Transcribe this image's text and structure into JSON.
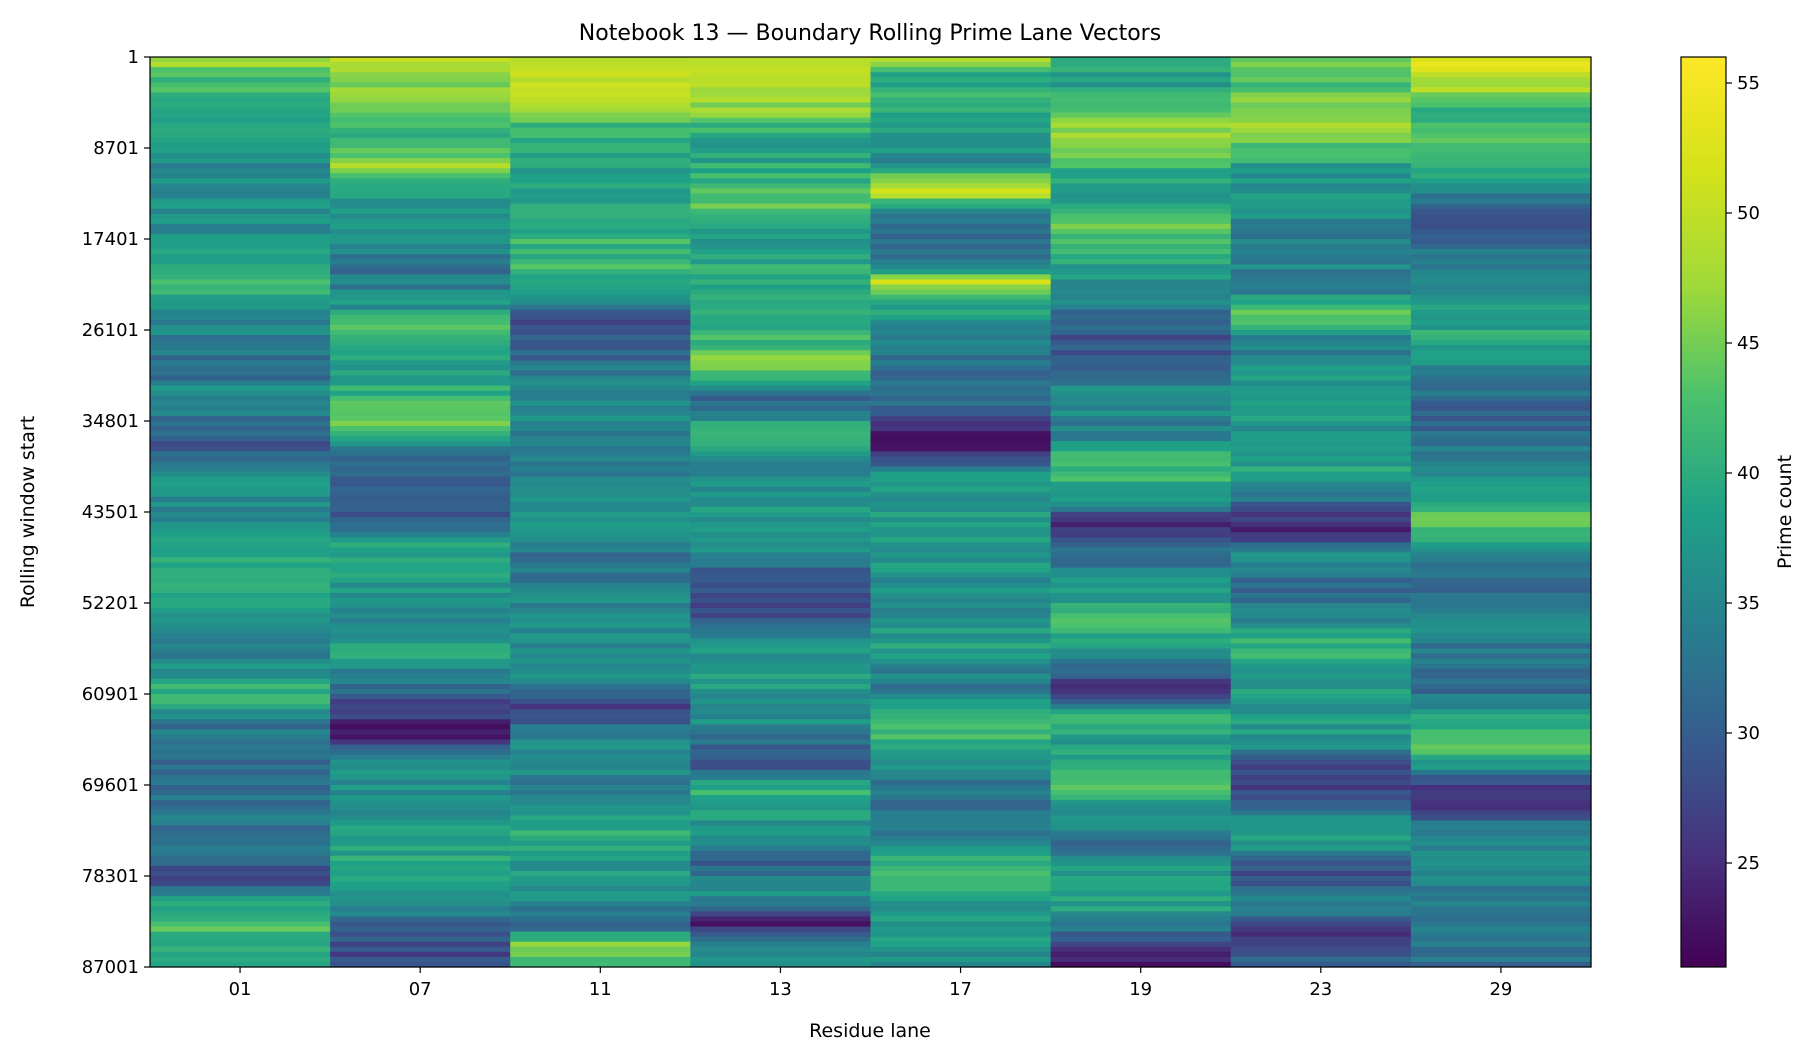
{
  "chart_data": {
    "type": "heatmap",
    "title": "Notebook 13 — Boundary Rolling Prime Lane Vectors",
    "xlabel": "Residue lane",
    "ylabel": "Rolling window start",
    "x_categories": [
      "01",
      "07",
      "11",
      "13",
      "17",
      "19",
      "23",
      "29"
    ],
    "y_ticks": [
      "1",
      "8701",
      "17401",
      "26101",
      "34801",
      "43501",
      "52201",
      "60901",
      "69601",
      "78301",
      "87001"
    ],
    "y_range": [
      1,
      87001
    ],
    "colorbar": {
      "label": "Prime count",
      "range": [
        21,
        56
      ],
      "ticks": [
        25,
        30,
        35,
        40,
        45,
        50,
        55
      ],
      "colormap": "viridis"
    },
    "anchors": [
      [
        [
          1,
          50
        ],
        [
          2000,
          42
        ],
        [
          5000,
          41
        ],
        [
          8000,
          38
        ],
        [
          11000,
          35
        ],
        [
          14000,
          37
        ],
        [
          17000,
          36
        ],
        [
          20000,
          38
        ],
        [
          21700,
          45
        ],
        [
          23000,
          37
        ],
        [
          26000,
          35
        ],
        [
          30000,
          31
        ],
        [
          32000,
          36
        ],
        [
          37000,
          29
        ],
        [
          40000,
          36
        ],
        [
          45000,
          36
        ],
        [
          48000,
          40
        ],
        [
          51000,
          38
        ],
        [
          54000,
          36
        ],
        [
          57000,
          33
        ],
        [
          61000,
          42
        ],
        [
          64000,
          33
        ],
        [
          68000,
          32
        ],
        [
          72000,
          33
        ],
        [
          76000,
          33
        ],
        [
          78400,
          26
        ],
        [
          80000,
          36
        ],
        [
          83000,
          43
        ],
        [
          86000,
          38
        ],
        [
          87001,
          38
        ]
      ],
      [
        [
          1,
          52
        ],
        [
          2000,
          46
        ],
        [
          5000,
          45
        ],
        [
          7500,
          40
        ],
        [
          10500,
          48
        ],
        [
          13000,
          38
        ],
        [
          17000,
          38
        ],
        [
          20000,
          32
        ],
        [
          24000,
          37
        ],
        [
          26000,
          44
        ],
        [
          30000,
          38
        ],
        [
          35000,
          45
        ],
        [
          38000,
          32
        ],
        [
          44000,
          30
        ],
        [
          47000,
          40
        ],
        [
          50000,
          38
        ],
        [
          53000,
          35
        ],
        [
          57000,
          39
        ],
        [
          61000,
          30
        ],
        [
          65000,
          22
        ],
        [
          67000,
          36
        ],
        [
          70000,
          36
        ],
        [
          74000,
          38
        ],
        [
          78000,
          40
        ],
        [
          81000,
          36
        ],
        [
          84000,
          29
        ],
        [
          87001,
          27
        ]
      ],
      [
        [
          1,
          47
        ],
        [
          2500,
          51
        ],
        [
          4500,
          49
        ],
        [
          7000,
          41
        ],
        [
          10000,
          38
        ],
        [
          14000,
          39
        ],
        [
          17000,
          41
        ],
        [
          20000,
          42
        ],
        [
          23000,
          36
        ],
        [
          25000,
          27
        ],
        [
          28000,
          30
        ],
        [
          32000,
          36
        ],
        [
          36000,
          35
        ],
        [
          40000,
          33
        ],
        [
          44000,
          37
        ],
        [
          48000,
          32
        ],
        [
          52000,
          35
        ],
        [
          56000,
          36
        ],
        [
          59000,
          36
        ],
        [
          62000,
          27
        ],
        [
          66000,
          37
        ],
        [
          70000,
          34
        ],
        [
          74000,
          40
        ],
        [
          77000,
          38
        ],
        [
          80000,
          36
        ],
        [
          83000,
          31
        ],
        [
          85000,
          46
        ],
        [
          87001,
          40
        ]
      ],
      [
        [
          1,
          48
        ],
        [
          2000,
          50
        ],
        [
          5000,
          46
        ],
        [
          8000,
          38
        ],
        [
          11000,
          40
        ],
        [
          14000,
          44
        ],
        [
          18000,
          36
        ],
        [
          21000,
          41
        ],
        [
          25000,
          38
        ],
        [
          29500,
          46
        ],
        [
          33000,
          30
        ],
        [
          36000,
          42
        ],
        [
          39000,
          33
        ],
        [
          42000,
          38
        ],
        [
          46000,
          38
        ],
        [
          50000,
          29
        ],
        [
          53000,
          27
        ],
        [
          56000,
          37
        ],
        [
          60000,
          38
        ],
        [
          64000,
          36
        ],
        [
          67500,
          27
        ],
        [
          70000,
          41
        ],
        [
          73000,
          38
        ],
        [
          77000,
          30
        ],
        [
          80000,
          37
        ],
        [
          82800,
          24
        ],
        [
          85000,
          35
        ],
        [
          87001,
          35
        ]
      ],
      [
        [
          1,
          48
        ],
        [
          1500,
          41
        ],
        [
          4000,
          40
        ],
        [
          7000,
          38
        ],
        [
          10000,
          36
        ],
        [
          12800,
          51
        ],
        [
          15000,
          33
        ],
        [
          18000,
          32
        ],
        [
          20000,
          35
        ],
        [
          21500,
          50
        ],
        [
          23500,
          39
        ],
        [
          27000,
          35
        ],
        [
          30000,
          31
        ],
        [
          33000,
          33
        ],
        [
          37000,
          22
        ],
        [
          40000,
          37
        ],
        [
          44000,
          38
        ],
        [
          48000,
          37
        ],
        [
          52000,
          36
        ],
        [
          57000,
          38
        ],
        [
          60000,
          33
        ],
        [
          63000,
          43
        ],
        [
          66000,
          40
        ],
        [
          69000,
          33
        ],
        [
          73000,
          32
        ],
        [
          76000,
          38
        ],
        [
          78600,
          43
        ],
        [
          81000,
          38
        ],
        [
          84000,
          37
        ],
        [
          87001,
          37
        ]
      ],
      [
        [
          1,
          40
        ],
        [
          3000,
          38
        ],
        [
          6000,
          45
        ],
        [
          8500,
          48
        ],
        [
          11000,
          39
        ],
        [
          14000,
          37
        ],
        [
          16000,
          46
        ],
        [
          19000,
          39
        ],
        [
          22000,
          37
        ],
        [
          25500,
          30
        ],
        [
          28000,
          29
        ],
        [
          32000,
          36
        ],
        [
          36000,
          34
        ],
        [
          39000,
          43
        ],
        [
          42000,
          38
        ],
        [
          44500,
          24
        ],
        [
          47000,
          31
        ],
        [
          50000,
          36
        ],
        [
          54000,
          42
        ],
        [
          57000,
          38
        ],
        [
          60500,
          23
        ],
        [
          63000,
          40
        ],
        [
          66000,
          38
        ],
        [
          69000,
          43
        ],
        [
          72000,
          38
        ],
        [
          75000,
          31
        ],
        [
          79000,
          41
        ],
        [
          82000,
          37
        ],
        [
          84000,
          30
        ],
        [
          86000,
          24
        ],
        [
          87001,
          24
        ]
      ],
      [
        [
          1,
          44
        ],
        [
          2000,
          42
        ],
        [
          5500,
          48
        ],
        [
          8000,
          44
        ],
        [
          11000,
          37
        ],
        [
          14000,
          38
        ],
        [
          17000,
          34
        ],
        [
          19000,
          36
        ],
        [
          22000,
          32
        ],
        [
          24500,
          47
        ],
        [
          27000,
          33
        ],
        [
          30000,
          37
        ],
        [
          33000,
          40
        ],
        [
          36000,
          36
        ],
        [
          40000,
          39
        ],
        [
          44000,
          27
        ],
        [
          45500,
          23
        ],
        [
          47500,
          35
        ],
        [
          51000,
          31
        ],
        [
          54000,
          36
        ],
        [
          56500,
          42
        ],
        [
          59000,
          37
        ],
        [
          63000,
          38
        ],
        [
          66000,
          37
        ],
        [
          67500,
          28
        ],
        [
          69000,
          26
        ],
        [
          72000,
          33
        ],
        [
          75000,
          39
        ],
        [
          78000,
          27
        ],
        [
          81000,
          35
        ],
        [
          84000,
          26
        ],
        [
          87001,
          31
        ]
      ],
      [
        [
          1,
          53
        ],
        [
          1500,
          51
        ],
        [
          3000,
          48
        ],
        [
          5500,
          40
        ],
        [
          8500,
          44
        ],
        [
          11000,
          40
        ],
        [
          13500,
          33
        ],
        [
          16000,
          30
        ],
        [
          20000,
          34
        ],
        [
          24000,
          37
        ],
        [
          27000,
          40
        ],
        [
          31000,
          33
        ],
        [
          35000,
          30
        ],
        [
          39000,
          36
        ],
        [
          42000,
          40
        ],
        [
          44000,
          43
        ],
        [
          46000,
          42
        ],
        [
          48000,
          33
        ],
        [
          51000,
          30
        ],
        [
          54000,
          36
        ],
        [
          57000,
          33
        ],
        [
          60000,
          31
        ],
        [
          64000,
          40
        ],
        [
          66000,
          46
        ],
        [
          69000,
          30
        ],
        [
          71000,
          24
        ],
        [
          74000,
          35
        ],
        [
          78000,
          35
        ],
        [
          82000,
          34
        ],
        [
          85000,
          33
        ],
        [
          87001,
          32
        ]
      ]
    ]
  }
}
